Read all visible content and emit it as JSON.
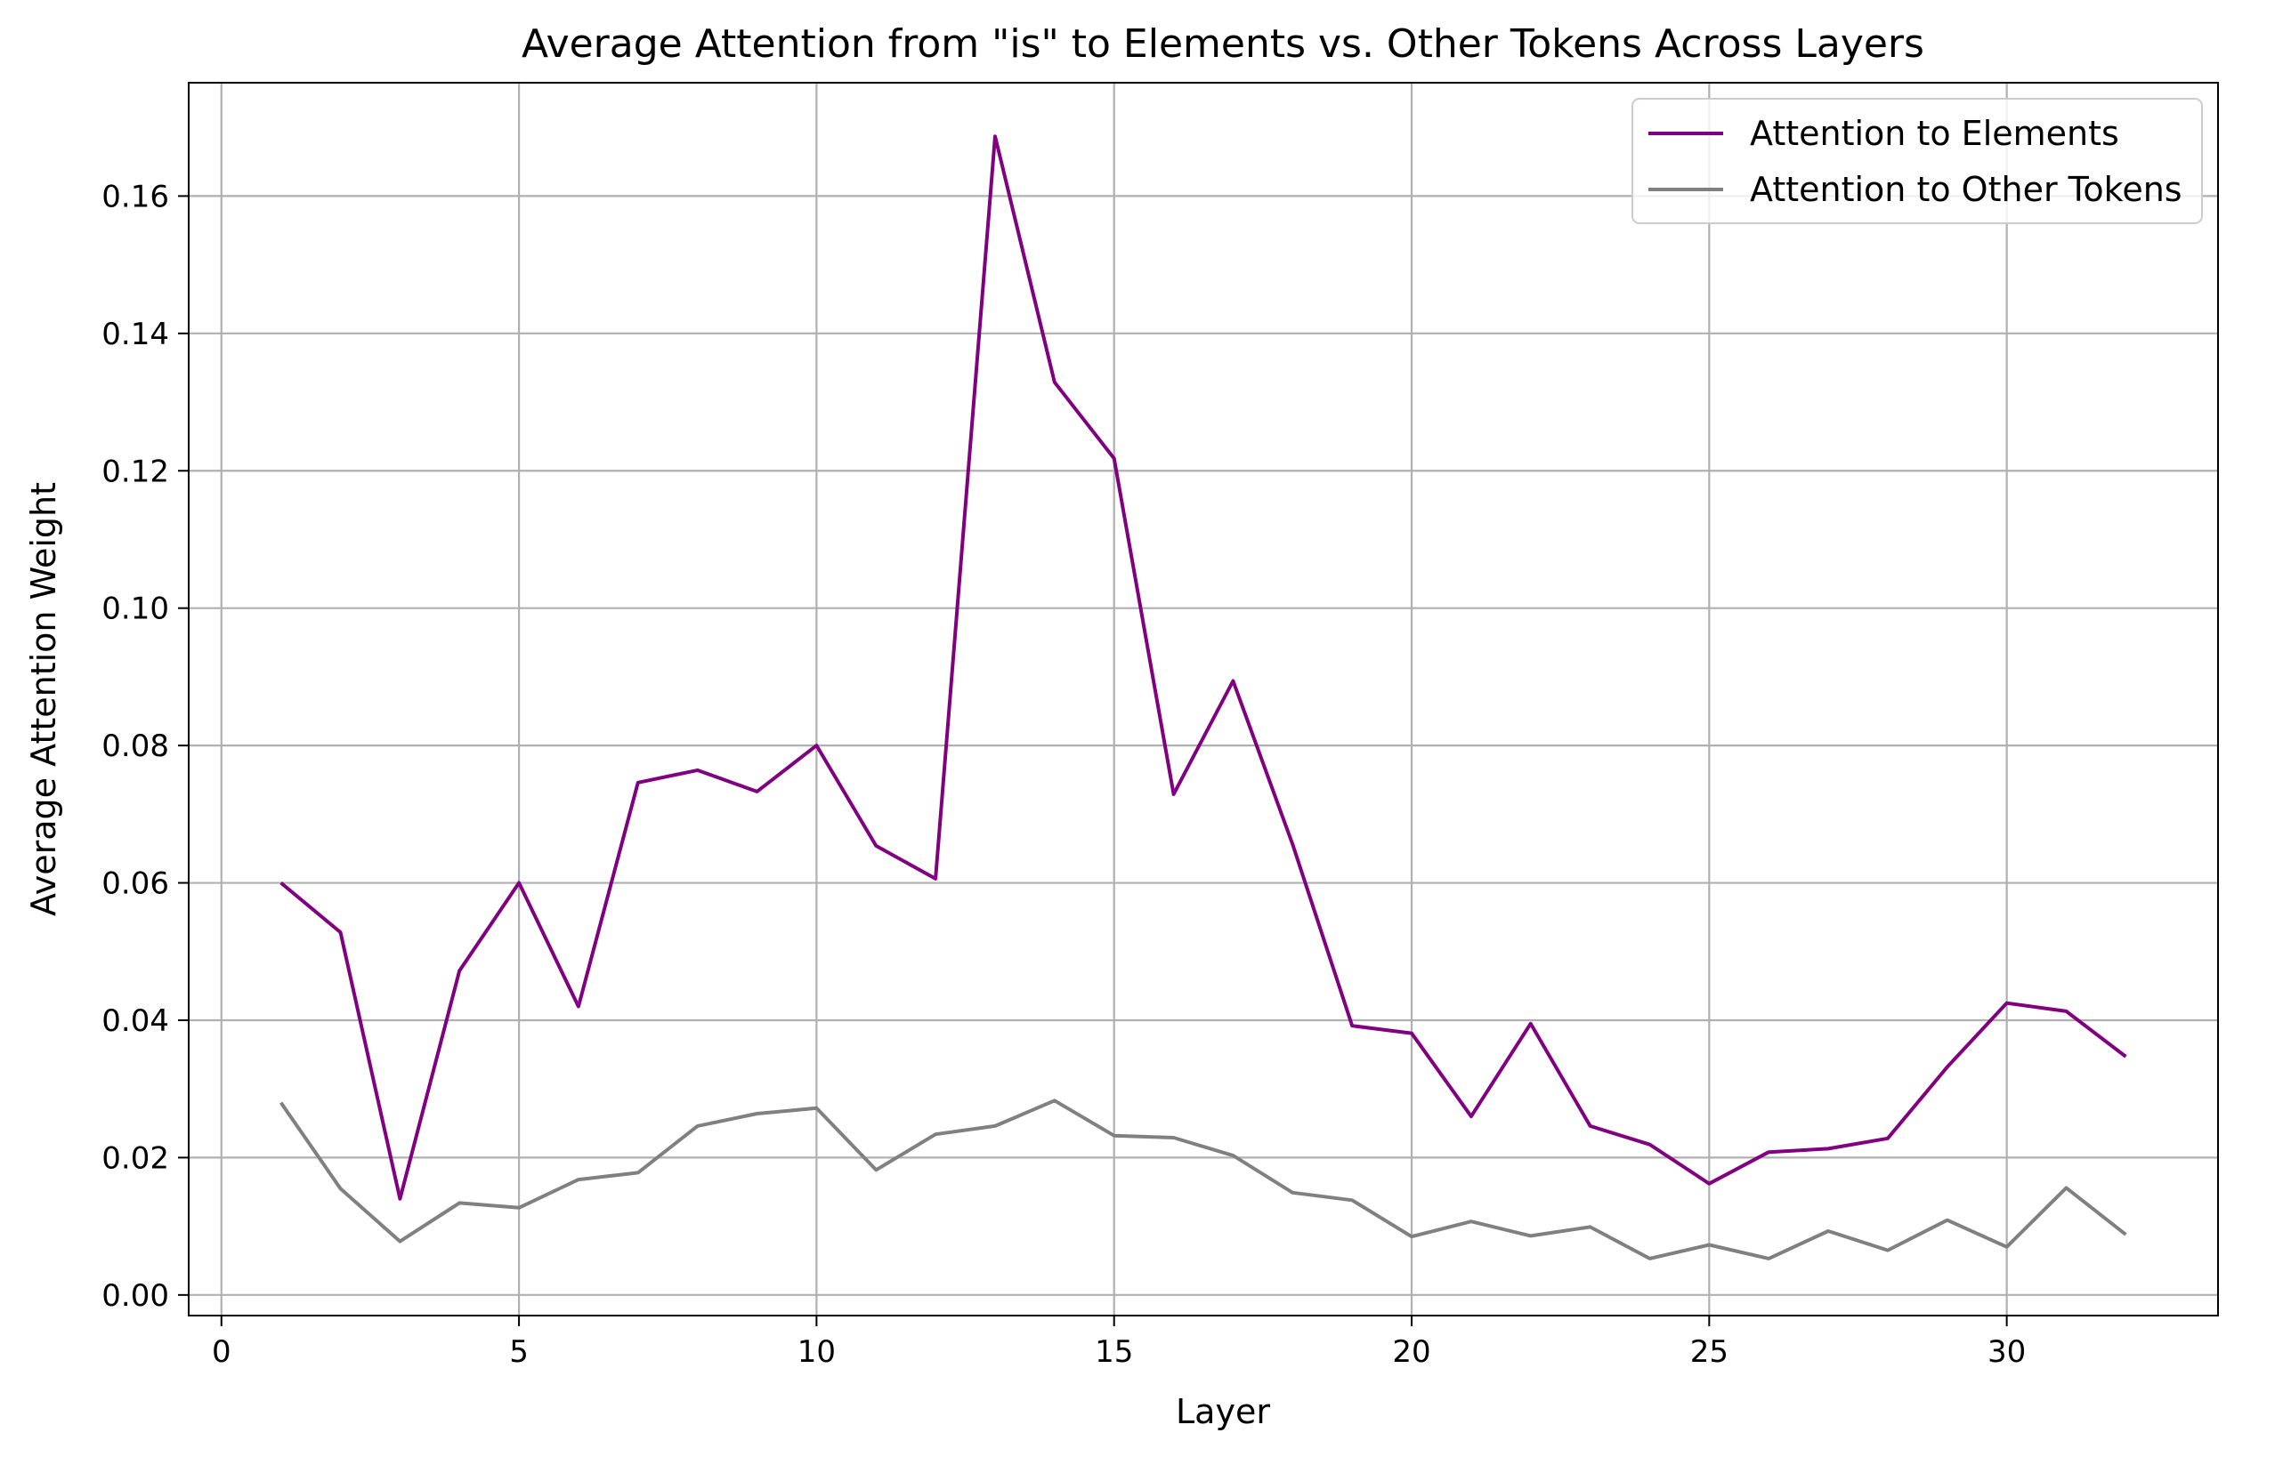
{
  "chart_data": {
    "type": "line",
    "title": "Average Attention from \"is\" to Elements vs. Other Tokens Across Layers",
    "xlabel": "Layer",
    "ylabel": "Average Attention Weight",
    "xlim": [
      -0.55,
      33.55
    ],
    "ylim": [
      -0.003,
      0.1765
    ],
    "xticks": [
      0,
      5,
      10,
      15,
      20,
      25,
      30
    ],
    "xtick_labels": [
      "0",
      "5",
      "10",
      "15",
      "20",
      "25",
      "30"
    ],
    "yticks": [
      0.0,
      0.02,
      0.04,
      0.06,
      0.08,
      0.1,
      0.12,
      0.14,
      0.16
    ],
    "ytick_labels": [
      "0.00",
      "0.02",
      "0.04",
      "0.06",
      "0.08",
      "0.10",
      "0.12",
      "0.14",
      "0.16"
    ],
    "grid": true,
    "legend_position": "top-right",
    "x": [
      1,
      2,
      3,
      4,
      5,
      6,
      7,
      8,
      9,
      10,
      11,
      12,
      13,
      14,
      15,
      16,
      17,
      18,
      19,
      20,
      21,
      22,
      23,
      24,
      25,
      26,
      27,
      28,
      29,
      30,
      31,
      32
    ],
    "series": [
      {
        "name": "Attention to Elements",
        "color": "#800080",
        "values": [
          0.06,
          0.0528,
          0.014,
          0.0472,
          0.06,
          0.042,
          0.0746,
          0.0764,
          0.0733,
          0.08,
          0.0654,
          0.0606,
          0.1687,
          0.1329,
          0.1218,
          0.0729,
          0.0894,
          0.0656,
          0.0392,
          0.0381,
          0.026,
          0.0395,
          0.0246,
          0.0219,
          0.0162,
          0.0208,
          0.0213,
          0.0228,
          0.0332,
          0.0425,
          0.0413,
          0.0347
        ]
      },
      {
        "name": "Attention to Other Tokens",
        "color": "#808080",
        "values": [
          0.028,
          0.0155,
          0.0078,
          0.0134,
          0.0127,
          0.0168,
          0.0178,
          0.0246,
          0.0264,
          0.0272,
          0.0182,
          0.0234,
          0.0246,
          0.0283,
          0.0232,
          0.0229,
          0.0203,
          0.0149,
          0.0138,
          0.0085,
          0.0107,
          0.0086,
          0.0099,
          0.0053,
          0.0073,
          0.0053,
          0.0093,
          0.0065,
          0.0109,
          0.007,
          0.0156,
          0.0088
        ]
      }
    ]
  }
}
